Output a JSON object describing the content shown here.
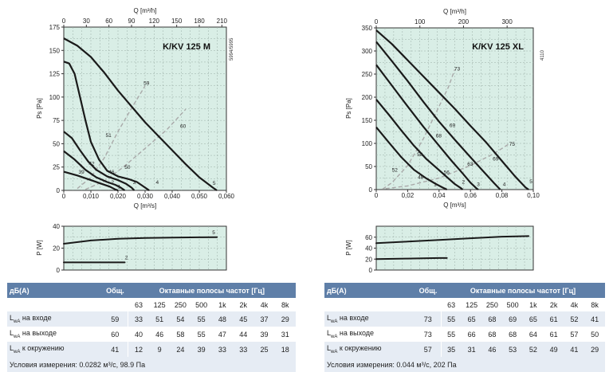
{
  "panels": [
    {
      "model_label": "K/KV 125 M",
      "side_code": "5994/5995",
      "table": {
        "header_left": "дБ(A)",
        "header_total": "Общ.",
        "header_bands": "Октавные полосы частот [Гц]",
        "bands": [
          "63",
          "125",
          "250",
          "500",
          "1k",
          "2k",
          "4k",
          "8k"
        ],
        "rows": [
          {
            "label": "L",
            "sub": "wA",
            "text": " на входе",
            "total": "59",
            "values": [
              "33",
              "51",
              "54",
              "55",
              "48",
              "45",
              "37",
              "29"
            ]
          },
          {
            "label": "L",
            "sub": "wA",
            "text": " на выходе",
            "total": "60",
            "values": [
              "40",
              "46",
              "58",
              "55",
              "47",
              "44",
              "39",
              "31"
            ]
          },
          {
            "label": "L",
            "sub": "wA",
            "text": " к окружению",
            "total": "41",
            "values": [
              "12",
              "9",
              "24",
              "39",
              "33",
              "33",
              "25",
              "18"
            ]
          }
        ],
        "condition": "Условия измерения: 0.0282 м³/с, 98.9 Па"
      }
    },
    {
      "model_label": "K/KV 125 XL",
      "side_code": "4110",
      "table": {
        "header_left": "дБ(A)",
        "header_total": "Общ.",
        "header_bands": "Октавные полосы частот [Гц]",
        "bands": [
          "63",
          "125",
          "250",
          "500",
          "1k",
          "2k",
          "4k",
          "8k"
        ],
        "rows": [
          {
            "label": "L",
            "sub": "wA",
            "text": " на входе",
            "total": "73",
            "values": [
              "55",
              "65",
              "68",
              "69",
              "65",
              "61",
              "52",
              "41"
            ]
          },
          {
            "label": "L",
            "sub": "wA",
            "text": " на выходе",
            "total": "73",
            "values": [
              "55",
              "66",
              "68",
              "68",
              "64",
              "61",
              "57",
              "50"
            ]
          },
          {
            "label": "L",
            "sub": "wA",
            "text": " к окружению",
            "total": "57",
            "values": [
              "35",
              "31",
              "46",
              "53",
              "52",
              "49",
              "41",
              "29"
            ]
          }
        ],
        "condition": "Условия измерения: 0.044 м³/с, 202 Па"
      }
    }
  ],
  "colors": {
    "plot_bg": "#d9eee6",
    "grid": "#9aaea6",
    "curve": "#1a1a1a",
    "efficiency_curve": "#a9a9a9",
    "table_header": "#5f7fa8",
    "table_alt": "#e6ecf4"
  },
  "chart_data": [
    {
      "type": "line",
      "model": "K/KV 125 M",
      "x_top_label": "Q [m³/h]",
      "x_top_ticks": [
        "0",
        "30",
        "60",
        "90",
        "120",
        "150",
        "180",
        "210"
      ],
      "xlabel": "Q [m³/s]",
      "x_ticks": [
        "0",
        "0,010",
        "0,020",
        "0,030",
        "0,040",
        "0,050",
        "0,060"
      ],
      "ylabel": "Ps [Pa]",
      "y_ticks": [
        "0",
        "25",
        "50",
        "75",
        "100",
        "125",
        "150",
        "175"
      ],
      "xlim": [
        0,
        0.06
      ],
      "ylim": [
        0,
        175
      ],
      "grid": true,
      "speed_curves": [
        {
          "name": "1",
          "points": [
            [
              0,
              20
            ],
            [
              0.005,
              16
            ],
            [
              0.01,
              11
            ],
            [
              0.014,
              7
            ],
            [
              0.017,
              4
            ],
            [
              0.019,
              1
            ],
            [
              0.02,
              0
            ]
          ]
        },
        {
          "name": "2",
          "points": [
            [
              0,
              42
            ],
            [
              0.004,
              33
            ],
            [
              0.008,
              22
            ],
            [
              0.012,
              14
            ],
            [
              0.016,
              9
            ],
            [
              0.019,
              6
            ],
            [
              0.021,
              3
            ],
            [
              0.0225,
              0
            ]
          ]
        },
        {
          "name": "3",
          "points": [
            [
              0,
              63
            ],
            [
              0.003,
              56
            ],
            [
              0.006,
              43
            ],
            [
              0.009,
              31
            ],
            [
              0.012,
              22
            ],
            [
              0.016,
              15
            ],
            [
              0.02,
              11
            ],
            [
              0.023,
              7
            ],
            [
              0.025,
              3
            ],
            [
              0.026,
              0
            ]
          ]
        },
        {
          "name": "4",
          "points": [
            [
              0,
              138
            ],
            [
              0.002,
              136
            ],
            [
              0.004,
              125
            ],
            [
              0.006,
              100
            ],
            [
              0.008,
              75
            ],
            [
              0.01,
              52
            ],
            [
              0.013,
              33
            ],
            [
              0.016,
              21
            ],
            [
              0.02,
              15
            ],
            [
              0.024,
              12
            ],
            [
              0.027,
              9
            ],
            [
              0.029,
              5
            ],
            [
              0.031,
              1
            ],
            [
              0.0315,
              0
            ]
          ]
        },
        {
          "name": "5",
          "points": [
            [
              0,
              163
            ],
            [
              0.005,
              155
            ],
            [
              0.01,
              143
            ],
            [
              0.015,
              126
            ],
            [
              0.02,
              107
            ],
            [
              0.025,
              90
            ],
            [
              0.03,
              73
            ],
            [
              0.035,
              58
            ],
            [
              0.04,
              43
            ],
            [
              0.045,
              28
            ],
            [
              0.05,
              14
            ],
            [
              0.055,
              3
            ],
            [
              0.0565,
              0
            ]
          ]
        }
      ],
      "efficiency_curves": [
        {
          "points": [
            [
              0.005,
              2
            ],
            [
              0.01,
              14
            ],
            [
              0.015,
              35
            ],
            [
              0.02,
              63
            ],
            [
              0.025,
              88
            ],
            [
              0.03,
              112
            ]
          ]
        },
        {
          "points": [
            [
              0.008,
              1
            ],
            [
              0.015,
              10
            ],
            [
              0.022,
              25
            ],
            [
              0.03,
              45
            ],
            [
              0.038,
              65
            ],
            [
              0.045,
              87
            ]
          ]
        }
      ],
      "annotations": [
        {
          "text": "59",
          "x": 0.0305,
          "y": 113
        },
        {
          "text": "60",
          "x": 0.044,
          "y": 67
        },
        {
          "text": "51",
          "x": 0.0165,
          "y": 57
        },
        {
          "text": "50",
          "x": 0.0235,
          "y": 23
        },
        {
          "text": "46",
          "x": 0.0176,
          "y": 18
        },
        {
          "text": "42",
          "x": 0.0103,
          "y": 27
        },
        {
          "text": "39",
          "x": 0.0065,
          "y": 18
        },
        {
          "text": "1",
          "x": 0.0205,
          "y": 2
        },
        {
          "text": "2",
          "x": 0.018,
          "y": 7
        },
        {
          "text": "3",
          "x": 0.026,
          "y": 7
        },
        {
          "text": "4",
          "x": 0.0345,
          "y": 7
        },
        {
          "text": "5",
          "x": 0.0555,
          "y": 6
        }
      ],
      "power": {
        "ylabel": "P [W]",
        "y_ticks": [
          "0",
          "20",
          "40"
        ],
        "ylim": [
          0,
          40
        ],
        "curves": [
          {
            "name": "5",
            "points": [
              [
                0,
                24
              ],
              [
                0.01,
                27
              ],
              [
                0.02,
                28.5
              ],
              [
                0.03,
                29.3
              ],
              [
                0.04,
                29.7
              ],
              [
                0.05,
                29.9
              ],
              [
                0.0565,
                30
              ]
            ]
          },
          {
            "name": "2",
            "points": [
              [
                0,
                7
              ],
              [
                0.0225,
                7
              ]
            ]
          }
        ]
      }
    },
    {
      "type": "line",
      "model": "K/KV 125 XL",
      "x_top_label": "Q [m³/h]",
      "x_top_ticks": [
        "0",
        "100",
        "200",
        "300"
      ],
      "xlabel": "Q [m³/s]",
      "x_ticks": [
        "0",
        "0,02",
        "0,04",
        "0,06",
        "0,08",
        "0,10"
      ],
      "ylabel": "Ps [Pa]",
      "y_ticks": [
        "0",
        "50",
        "100",
        "150",
        "200",
        "250",
        "300",
        "350"
      ],
      "xlim": [
        0,
        0.1
      ],
      "ylim": [
        0,
        350
      ],
      "grid": true,
      "speed_curves": [
        {
          "name": "1",
          "points": [
            [
              0,
              135
            ],
            [
              0.008,
              102
            ],
            [
              0.016,
              70
            ],
            [
              0.024,
              43
            ],
            [
              0.032,
              24
            ],
            [
              0.038,
              12
            ],
            [
              0.042,
              5
            ],
            [
              0.045,
              0
            ]
          ]
        },
        {
          "name": "2",
          "points": [
            [
              0,
              195
            ],
            [
              0.008,
              162
            ],
            [
              0.016,
              128
            ],
            [
              0.024,
              95
            ],
            [
              0.032,
              66
            ],
            [
              0.04,
              42
            ],
            [
              0.046,
              24
            ],
            [
              0.05,
              12
            ],
            [
              0.054,
              3
            ],
            [
              0.055,
              0
            ]
          ]
        },
        {
          "name": "3",
          "points": [
            [
              0,
              270
            ],
            [
              0.01,
              225
            ],
            [
              0.02,
              180
            ],
            [
              0.03,
              136
            ],
            [
              0.04,
              95
            ],
            [
              0.048,
              62
            ],
            [
              0.055,
              35
            ],
            [
              0.06,
              15
            ],
            [
              0.064,
              2
            ],
            [
              0.065,
              0
            ]
          ]
        },
        {
          "name": "4",
          "points": [
            [
              0,
              320
            ],
            [
              0.01,
              278
            ],
            [
              0.02,
              235
            ],
            [
              0.03,
              190
            ],
            [
              0.04,
              147
            ],
            [
              0.05,
              108
            ],
            [
              0.06,
              70
            ],
            [
              0.068,
              40
            ],
            [
              0.075,
              14
            ],
            [
              0.079,
              0
            ]
          ]
        },
        {
          "name": "5",
          "points": [
            [
              0,
              345
            ],
            [
              0.01,
              315
            ],
            [
              0.02,
              280
            ],
            [
              0.03,
              245
            ],
            [
              0.04,
              210
            ],
            [
              0.05,
              175
            ],
            [
              0.06,
              138
            ],
            [
              0.07,
              102
            ],
            [
              0.08,
              62
            ],
            [
              0.088,
              30
            ],
            [
              0.095,
              5
            ],
            [
              0.097,
              0
            ]
          ]
        }
      ],
      "efficiency_curves": [
        {
          "points": [
            [
              0.004,
              1
            ],
            [
              0.01,
              15
            ],
            [
              0.02,
              52
            ],
            [
              0.03,
              110
            ],
            [
              0.04,
              180
            ],
            [
              0.046,
              222
            ],
            [
              0.05,
              260
            ]
          ]
        },
        {
          "points": [
            [
              0.006,
              2
            ],
            [
              0.02,
              8
            ],
            [
              0.04,
              25
            ],
            [
              0.06,
              52
            ],
            [
              0.075,
              78
            ],
            [
              0.085,
              100
            ]
          ]
        }
      ],
      "annotations": [
        {
          "text": "73",
          "x": 0.0515,
          "y": 258
        },
        {
          "text": "69",
          "x": 0.0485,
          "y": 135
        },
        {
          "text": "68",
          "x": 0.0398,
          "y": 113
        },
        {
          "text": "58",
          "x": 0.0278,
          "y": 72
        },
        {
          "text": "52",
          "x": 0.0118,
          "y": 39
        },
        {
          "text": "48",
          "x": 0.0283,
          "y": 23
        },
        {
          "text": "56",
          "x": 0.0448,
          "y": 34
        },
        {
          "text": "63",
          "x": 0.0598,
          "y": 52
        },
        {
          "text": "69",
          "x": 0.076,
          "y": 63
        },
        {
          "text": "75",
          "x": 0.0865,
          "y": 95
        },
        {
          "text": "1",
          "x": 0.0375,
          "y": 8
        },
        {
          "text": "2",
          "x": 0.0555,
          "y": 13
        },
        {
          "text": "3",
          "x": 0.065,
          "y": 8
        },
        {
          "text": "4",
          "x": 0.0815,
          "y": 8
        },
        {
          "text": "5",
          "x": 0.0985,
          "y": 14
        }
      ],
      "power": {
        "ylabel": "P [W]",
        "y_ticks": [
          "0",
          "20",
          "40",
          "60"
        ],
        "ylim": [
          0,
          80
        ],
        "curves": [
          {
            "name": "5",
            "points": [
              [
                0,
                49
              ],
              [
                0.02,
                52
              ],
              [
                0.04,
                55
              ],
              [
                0.06,
                58
              ],
              [
                0.08,
                61
              ],
              [
                0.097,
                62
              ]
            ]
          },
          {
            "name": "1",
            "points": [
              [
                0,
                20
              ],
              [
                0.02,
                21
              ],
              [
                0.04,
                22
              ],
              [
                0.045,
                22
              ]
            ]
          }
        ]
      }
    }
  ]
}
